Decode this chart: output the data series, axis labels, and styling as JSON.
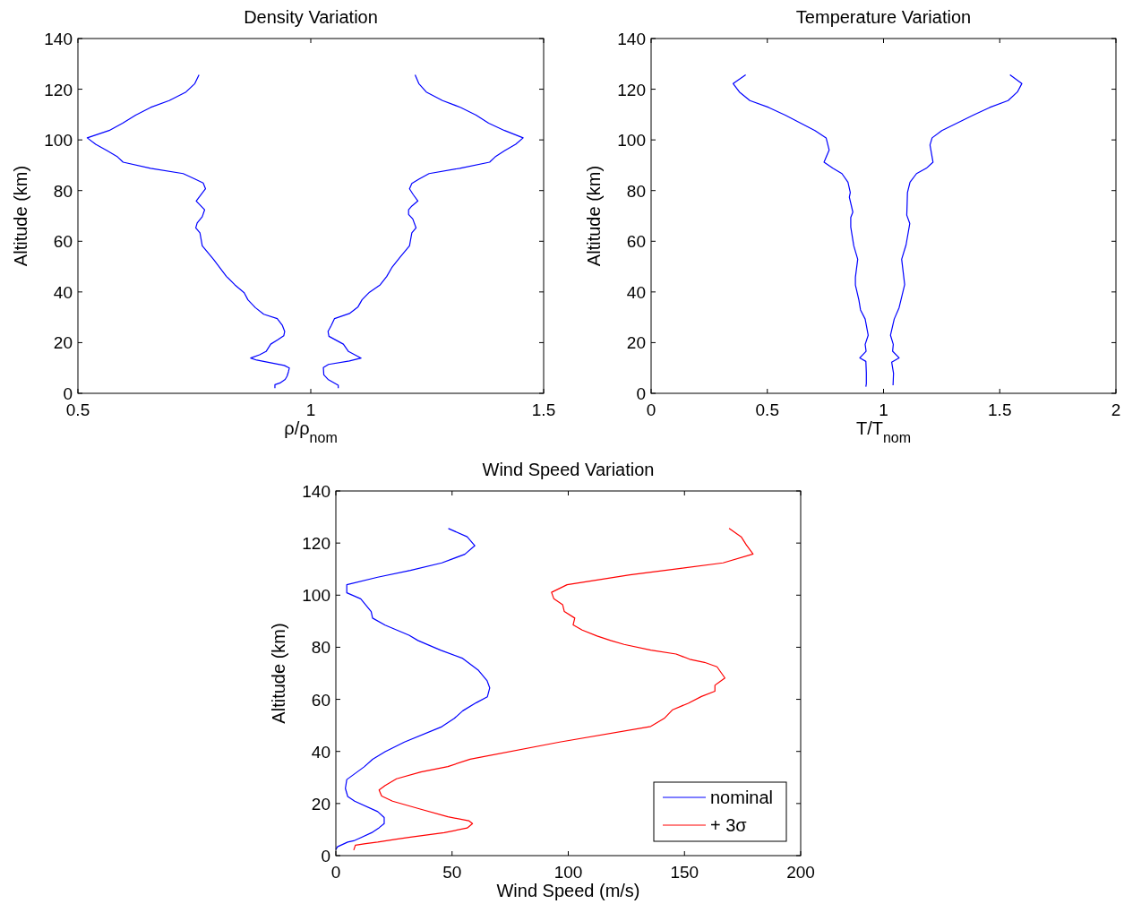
{
  "chart_data": [
    {
      "type": "line",
      "title": "Density Variation",
      "xlabel": "ρ/ρ$_{nom}$",
      "ylabel": "Altitude (km)",
      "xlim": [
        0.5,
        1.5
      ],
      "xticks": [
        0.5,
        1,
        1.5
      ],
      "ylim": [
        0,
        140
      ],
      "yticks": [
        0,
        20,
        40,
        60,
        80,
        100,
        120,
        140
      ],
      "grid": false,
      "legend": false,
      "series": [
        {
          "color": "#0000ff",
          "x": [
            0.76,
            0.751,
            0.732,
            0.696,
            0.656,
            0.624,
            0.596,
            0.567,
            0.52,
            0.538,
            0.563,
            0.585,
            0.597,
            0.656,
            0.726,
            0.752,
            0.769,
            0.774,
            0.766,
            0.754,
            0.772,
            0.767,
            0.756,
            0.753,
            0.762,
            0.767,
            0.791,
            0.819,
            0.837,
            0.857,
            0.865,
            0.881,
            0.899,
            0.928,
            0.939,
            0.944,
            0.942,
            0.929,
            0.914,
            0.904,
            0.89,
            0.871,
            0.884,
            0.943,
            0.954,
            0.952,
            0.949,
            0.945,
            0.934,
            0.923,
            0.923
          ],
          "values": [
            125.7,
            122.2,
            118.9,
            115.5,
            112.8,
            109.8,
            106.6,
            103.7,
            100.8,
            98.3,
            95.7,
            93.3,
            91.2,
            88.8,
            86.7,
            84.5,
            83,
            80.7,
            78.8,
            75.9,
            72.4,
            69.7,
            67.2,
            65.3,
            63.3,
            58.2,
            52.9,
            46.1,
            42.8,
            39.7,
            36.9,
            33.8,
            31.2,
            29.5,
            26.8,
            24.4,
            22.7,
            21.1,
            19.4,
            16.5,
            15.2,
            13.9,
            13.1,
            11,
            10,
            8.5,
            6.7,
            5.5,
            4.1,
            3.4,
            2
          ]
        },
        {
          "color": "#0000ff",
          "x": [
            1.224,
            1.232,
            1.248,
            1.283,
            1.322,
            1.355,
            1.382,
            1.416,
            1.456,
            1.44,
            1.416,
            1.396,
            1.384,
            1.32,
            1.254,
            1.232,
            1.217,
            1.212,
            1.22,
            1.23,
            1.217,
            1.21,
            1.21,
            1.219,
            1.226,
            1.217,
            1.212,
            1.192,
            1.174,
            1.163,
            1.149,
            1.126,
            1.11,
            1.101,
            1.083,
            1.051,
            1.044,
            1.037,
            1.039,
            1.07,
            1.081,
            1.108,
            1.083,
            1.038,
            1.027,
            1.028,
            1.037,
            1.059,
            1.059
          ],
          "values": [
            125.7,
            122.2,
            118.9,
            115.5,
            112.8,
            109.8,
            106.6,
            103.7,
            100.8,
            98.3,
            95.7,
            93.3,
            91.2,
            88.8,
            86.7,
            84.5,
            82.8,
            80.7,
            78.4,
            75.9,
            73.9,
            72.4,
            70.6,
            68.8,
            65.3,
            63.3,
            58.2,
            53.8,
            49.6,
            46.1,
            42.8,
            39.9,
            36.9,
            34,
            31.5,
            29.5,
            26.8,
            24.4,
            22.5,
            19.4,
            16.5,
            13.9,
            12.8,
            11.4,
            10.2,
            7.3,
            5.5,
            3.2,
            2
          ]
        }
      ]
    },
    {
      "type": "line",
      "title": "Temperature Variation",
      "xlabel": "T/T$_{nom}$",
      "ylabel": "Altitude (km)",
      "xlim": [
        0,
        2
      ],
      "xticks": [
        0,
        0.5,
        1,
        1.5,
        2
      ],
      "ylim": [
        0,
        140
      ],
      "yticks": [
        0,
        20,
        40,
        60,
        80,
        100,
        120,
        140
      ],
      "grid": false,
      "legend": false,
      "series": [
        {
          "color": "#0000ff",
          "x": [
            0.407,
            0.353,
            0.38,
            0.425,
            0.506,
            0.577,
            0.705,
            0.753,
            0.766,
            0.744,
            0.782,
            0.821,
            0.847,
            0.857,
            0.853,
            0.868,
            0.859,
            0.859,
            0.872,
            0.889,
            0.879,
            0.879,
            0.894,
            0.901,
            0.921,
            0.934,
            0.921,
            0.925,
            0.898,
            0.924,
            0.926,
            0.926,
            0.924
          ],
          "values": [
            125.7,
            122.2,
            118.9,
            115.5,
            112.8,
            109.8,
            103.7,
            100.8,
            96,
            91.2,
            88.8,
            86.7,
            83.3,
            79.2,
            77.4,
            71.5,
            69.4,
            65.6,
            58.2,
            52.9,
            45.8,
            42.7,
            36.8,
            32.9,
            29.3,
            22.9,
            19.3,
            16.6,
            14,
            12.6,
            8.1,
            3.8,
            2.6
          ]
        },
        {
          "color": "#0000ff",
          "x": [
            1.544,
            1.595,
            1.576,
            1.536,
            1.457,
            1.386,
            1.251,
            1.209,
            1.2,
            1.213,
            1.184,
            1.142,
            1.114,
            1.103,
            1.101,
            1.1,
            1.113,
            1.097,
            1.078,
            1.091,
            1.067,
            1.046,
            1.03,
            1.042,
            1.039,
            1.067,
            1.035,
            1.043,
            1.041
          ],
          "values": [
            125.7,
            122.2,
            118.9,
            115.5,
            112.8,
            109.8,
            103.7,
            100.8,
            98,
            91.2,
            88.8,
            86.7,
            83.3,
            79.2,
            72.9,
            70.3,
            67,
            58.6,
            52.9,
            42.9,
            33.8,
            29.3,
            22.9,
            19.3,
            16.6,
            14,
            12.3,
            7.9,
            3.2
          ]
        }
      ]
    },
    {
      "type": "line",
      "title": "Wind Speed Variation",
      "xlabel": "Wind Speed (m/s)",
      "ylabel": "Altitude (km)",
      "xlim": [
        0,
        200
      ],
      "xticks": [
        0,
        50,
        100,
        150,
        200
      ],
      "ylim": [
        0,
        140
      ],
      "yticks": [
        0,
        20,
        40,
        60,
        80,
        100,
        120,
        140
      ],
      "grid": false,
      "legend": "bottom right",
      "series": [
        {
          "name": "nominal",
          "color": "#0000ff",
          "x": [
            48.4,
            56.5,
            59.8,
            55.5,
            45.6,
            32.1,
            18,
            4.7,
            4.7,
            10.7,
            15.2,
            15.8,
            21.2,
            31.5,
            35.3,
            45,
            54.6,
            61.4,
            65.1,
            66.2,
            65.2,
            60.4,
            54.6,
            51,
            45.6,
            29.5,
            21.2,
            15.8,
            12.2,
            4.7,
            4.1,
            5.1,
            8.1,
            18,
            20.8,
            20.8,
            18.6,
            15.4,
            10.7,
            7.7,
            5.1,
            0.7,
            0
          ],
          "values": [
            125.6,
            122.4,
            119,
            115.7,
            112.4,
            109.5,
            106.9,
            104,
            100.9,
            98.6,
            93.7,
            91.2,
            88.5,
            84.6,
            82.6,
            78.9,
            75.7,
            71.1,
            67.1,
            64.4,
            61,
            58.7,
            55.6,
            52.7,
            49.5,
            43.6,
            39.9,
            37,
            34.1,
            29.2,
            25.8,
            22.7,
            20.9,
            16.9,
            14.6,
            12.3,
            10.7,
            8.8,
            6.9,
            5.7,
            5.2,
            3.4,
            2.3
          ]
        },
        {
          "name": "+ 3σ",
          "color": "#ff0000",
          "x": [
            169.2,
            174.4,
            176.6,
            179.5,
            166.6,
            126.5,
            99.5,
            92.8,
            93.8,
            97.6,
            98.3,
            102.8,
            102.1,
            106,
            112.4,
            118.2,
            124,
            135.5,
            146.4,
            152.2,
            158.6,
            164,
            167.4,
            163.1,
            163.1,
            157.3,
            151.6,
            144.9,
            141.3,
            135.5,
            96.3,
            57.8,
            48.2,
            36.6,
            26.1,
            21.2,
            18.6,
            19.7,
            24.4,
            36.6,
            48.2,
            57.2,
            58.8,
            56.5,
            46.6,
            32.1,
            26.1,
            18,
            12.8,
            8.4,
            7.7
          ],
          "values": [
            125.6,
            122.4,
            119.3,
            115.8,
            112.4,
            107.8,
            104,
            101.1,
            98.6,
            96.3,
            93.7,
            91.2,
            88.6,
            86.6,
            84.3,
            82.6,
            81.1,
            78.9,
            77.4,
            75.4,
            74.2,
            72.5,
            68.2,
            65.4,
            63.1,
            61.1,
            58.5,
            56,
            52.7,
            49.6,
            43.6,
            37,
            34.2,
            32.1,
            29.5,
            26.9,
            25.2,
            22.9,
            20.9,
            17.8,
            14.9,
            13.4,
            12.3,
            10.6,
            8.8,
            7.1,
            6.3,
            5.2,
            4.6,
            4,
            2.1
          ]
        }
      ]
    }
  ]
}
